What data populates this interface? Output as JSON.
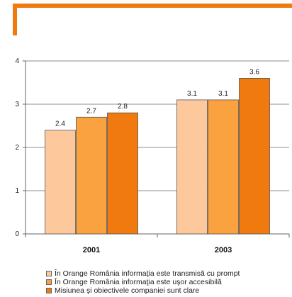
{
  "chart_data": {
    "type": "bar",
    "categories": [
      "2001",
      "2003"
    ],
    "series": [
      {
        "name": "În Orange România informaţia este transmisă cu prompt",
        "values": [
          2.4,
          3.1
        ],
        "color": "#fdc89c"
      },
      {
        "name": "În Orange România informaţia este uşor accesibilă",
        "values": [
          2.7,
          3.1
        ],
        "color": "#f9a23f"
      },
      {
        "name": "Misiunea şi obiectivele companiei sunt clare",
        "values": [
          2.8,
          3.6
        ],
        "color": "#f07a10"
      }
    ],
    "data_labels": [
      [
        "2.4",
        "3.1"
      ],
      [
        "2.7",
        "3.1"
      ],
      [
        "2.8",
        "3.6"
      ]
    ],
    "ylim": [
      0,
      4
    ],
    "yticks": [
      0,
      1,
      2,
      3,
      4
    ],
    "grid": true,
    "legend_position": "bottom",
    "title": "",
    "xlabel": "",
    "ylabel": ""
  },
  "decor": {
    "header_color": "#f07a10"
  }
}
